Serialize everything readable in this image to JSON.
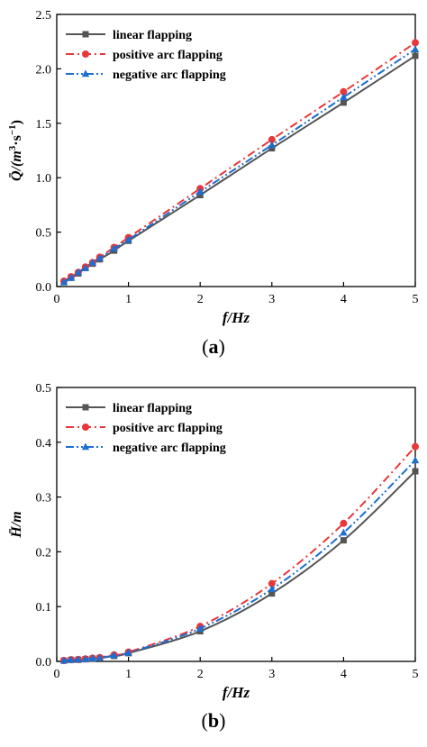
{
  "chart_data": [
    {
      "type": "line",
      "panel_label": "(a)",
      "xlabel": "f/Hz",
      "ylabel_main": "Q̄/(m",
      "ylabel_sup1": "3",
      "ylabel_mid": "·s",
      "ylabel_sup2": "−1",
      "ylabel_end": ")",
      "xlim": [
        0,
        5
      ],
      "ylim": [
        0,
        2.5
      ],
      "xticks": [
        "0",
        "1",
        "2",
        "3",
        "4",
        "5"
      ],
      "yticks": [
        "0.0",
        "0.5",
        "1.0",
        "1.5",
        "2.0",
        "2.5"
      ],
      "legend_position": "top-left",
      "x": [
        0.1,
        0.2,
        0.3,
        0.4,
        0.5,
        0.6,
        0.8,
        1,
        2,
        3,
        4,
        5
      ],
      "series": [
        {
          "name": "linear flapping",
          "color": "#555555",
          "dash": "solid",
          "marker": "square",
          "values": [
            0.04,
            0.08,
            0.12,
            0.17,
            0.21,
            0.25,
            0.33,
            0.42,
            0.84,
            1.27,
            1.69,
            2.12
          ]
        },
        {
          "name": "positive arc flapping",
          "color": "#e8373a",
          "dash": "dashdot",
          "marker": "circle",
          "values": [
            0.05,
            0.09,
            0.13,
            0.18,
            0.22,
            0.27,
            0.36,
            0.45,
            0.9,
            1.35,
            1.79,
            2.24
          ]
        },
        {
          "name": "negative arc flapping",
          "color": "#1a6fd0",
          "dash": "dashdotdot",
          "marker": "triangle",
          "values": [
            0.04,
            0.08,
            0.13,
            0.17,
            0.22,
            0.26,
            0.35,
            0.43,
            0.87,
            1.3,
            1.74,
            2.18
          ]
        }
      ]
    },
    {
      "type": "line",
      "panel_label": "(b)",
      "xlabel": "f/Hz",
      "ylabel_main": "H̄/m",
      "xlim": [
        0,
        5
      ],
      "ylim": [
        0,
        0.5
      ],
      "xticks": [
        "0",
        "1",
        "2",
        "3",
        "4",
        "5"
      ],
      "yticks": [
        "0.0",
        "0.1",
        "0.2",
        "0.3",
        "0.4",
        "0.5"
      ],
      "legend_position": "top-left",
      "x": [
        0.1,
        0.2,
        0.3,
        0.4,
        0.5,
        0.6,
        0.8,
        1,
        2,
        3,
        4,
        5
      ],
      "series": [
        {
          "name": "linear flapping",
          "color": "#555555",
          "dash": "solid",
          "marker": "square",
          "values": [
            0.0014,
            0.0028,
            0.003,
            0.004,
            0.005,
            0.006,
            0.01,
            0.015,
            0.055,
            0.124,
            0.221,
            0.347
          ]
        },
        {
          "name": "positive arc flapping",
          "color": "#e8373a",
          "dash": "dashdot",
          "marker": "circle",
          "values": [
            0.0016,
            0.003,
            0.0035,
            0.0045,
            0.006,
            0.007,
            0.012,
            0.017,
            0.064,
            0.142,
            0.252,
            0.392
          ]
        },
        {
          "name": "negative arc flapping",
          "color": "#1a6fd0",
          "dash": "dashdotdot",
          "marker": "triangle",
          "values": [
            0.0015,
            0.0029,
            0.0033,
            0.0042,
            0.0055,
            0.0065,
            0.011,
            0.016,
            0.06,
            0.132,
            0.235,
            0.367
          ]
        }
      ]
    }
  ]
}
